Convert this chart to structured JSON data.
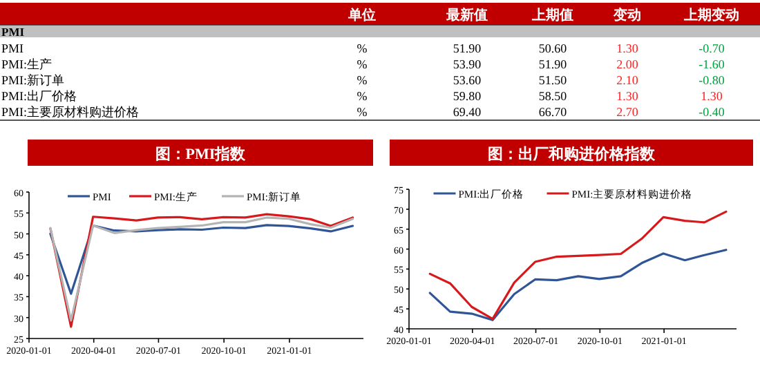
{
  "chart_data": [
    {
      "type": "other",
      "title": "PMI",
      "categories": [
        null,
        "单位",
        "最新值",
        "上期值",
        "变动",
        "上期变动"
      ],
      "y_categories": [
        "PMI",
        "PMI:生产",
        "PMI:新订单",
        "PMI:出厂价格",
        "PMI:主要原材料购进价格"
      ],
      "cell_labels": [
        [
          "%",
          "51.90",
          "50.60",
          "1.30",
          "-0.70"
        ],
        [
          "%",
          "53.90",
          "51.90",
          "2.00",
          "-1.60"
        ],
        [
          "%",
          "53.60",
          "51.50",
          "2.10",
          "-0.80"
        ],
        [
          "%",
          "59.80",
          "58.50",
          "1.30",
          "1.30"
        ],
        [
          "%",
          "69.40",
          "66.70",
          "2.70",
          "-0.40"
        ]
      ]
    },
    {
      "type": "line",
      "title": "图：PMI指数",
      "x": [
        "2020-01-31",
        "2020-02-29",
        "2020-03-31",
        "2020-04-30",
        "2020-05-31",
        "2020-06-30",
        "2020-07-31",
        "2020-08-31",
        "2020-09-30",
        "2020-10-31",
        "2020-11-30",
        "2020-12-31",
        "2021-01-31",
        "2021-02-28",
        "2021-03-31"
      ],
      "series": [
        {
          "name": "PMI",
          "color": "#2f5597",
          "values": [
            50.0,
            35.7,
            52.0,
            50.8,
            50.6,
            50.9,
            51.1,
            51.0,
            51.5,
            51.4,
            52.1,
            51.9,
            51.3,
            50.6,
            51.9
          ]
        },
        {
          "name": "PMI:生产",
          "color": "#d7191c",
          "values": [
            51.3,
            27.8,
            54.1,
            53.7,
            53.2,
            53.9,
            54.0,
            53.5,
            54.0,
            53.9,
            54.7,
            54.2,
            53.5,
            51.9,
            53.9
          ]
        },
        {
          "name": "PMI:新订单",
          "color": "#b4b4b4",
          "values": [
            51.4,
            29.3,
            52.0,
            50.2,
            50.9,
            51.4,
            51.7,
            52.0,
            52.8,
            52.8,
            53.9,
            53.6,
            52.3,
            51.5,
            53.6
          ]
        }
      ],
      "xlim": [
        "2020-01-01",
        "2021-04-15"
      ],
      "xticks": [
        "2020-01-01",
        "2020-04-01",
        "2020-07-01",
        "2020-10-01",
        "2021-01-01"
      ],
      "ylim": [
        25,
        60
      ],
      "yticks": [
        25,
        30,
        35,
        40,
        45,
        50,
        55,
        60
      ],
      "legend": "top",
      "grid": false
    },
    {
      "type": "line",
      "title": "图：出厂和购进价格指数",
      "x": [
        "2020-01-31",
        "2020-02-29",
        "2020-03-31",
        "2020-04-30",
        "2020-05-31",
        "2020-06-30",
        "2020-07-31",
        "2020-08-31",
        "2020-09-30",
        "2020-10-31",
        "2020-11-30",
        "2020-12-31",
        "2021-01-31",
        "2021-02-28",
        "2021-03-31"
      ],
      "series": [
        {
          "name": "PMI:出厂价格",
          "color": "#2f5597",
          "values": [
            49.0,
            44.3,
            43.8,
            42.2,
            48.7,
            52.4,
            52.2,
            53.2,
            52.5,
            53.2,
            56.5,
            58.9,
            57.2,
            58.5,
            59.8
          ]
        },
        {
          "name": "PMI:主要原材料购进价格",
          "color": "#d7191c",
          "values": [
            53.8,
            51.4,
            45.5,
            42.5,
            51.6,
            56.8,
            58.1,
            58.3,
            58.5,
            58.8,
            62.6,
            68.0,
            67.1,
            66.7,
            69.4
          ]
        }
      ],
      "xlim": [
        "2020-01-01",
        "2021-04-15"
      ],
      "xticks": [
        "2020-01-01",
        "2020-04-01",
        "2020-07-01",
        "2020-10-01",
        "2021-01-01"
      ],
      "ylim": [
        40,
        75
      ],
      "yticks": [
        40,
        45,
        50,
        55,
        60,
        65,
        70,
        75
      ],
      "legend": "top",
      "grid": false
    }
  ]
}
